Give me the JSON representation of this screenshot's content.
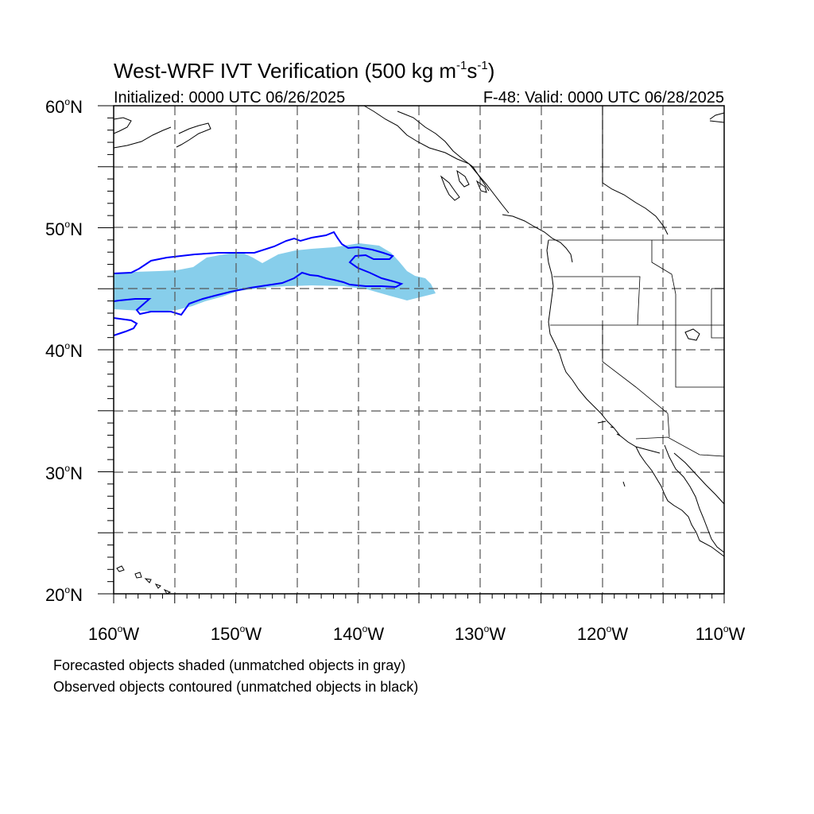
{
  "title": {
    "main": "West-WRF IVT Verification (500 kg m",
    "exp1": "-1",
    "mid": "s",
    "exp2": "-1",
    "close": ")"
  },
  "subtitle_left": "Initialized: 0000 UTC 06/26/2025",
  "subtitle_right": "F-48: Valid: 0000 UTC 06/28/2025",
  "lat_labels": [
    {
      "deg": "60",
      "hemi": "N",
      "lat": 60
    },
    {
      "deg": "50",
      "hemi": "N",
      "lat": 50
    },
    {
      "deg": "40",
      "hemi": "N",
      "lat": 40
    },
    {
      "deg": "30",
      "hemi": "N",
      "lat": 30
    },
    {
      "deg": "20",
      "hemi": "N",
      "lat": 20
    }
  ],
  "lon_labels": [
    {
      "deg": "160",
      "hemi": "W",
      "lon": -160
    },
    {
      "deg": "150",
      "hemi": "W",
      "lon": -150
    },
    {
      "deg": "140",
      "hemi": "W",
      "lon": -140
    },
    {
      "deg": "130",
      "hemi": "W",
      "lon": -130
    },
    {
      "deg": "120",
      "hemi": "W",
      "lon": -120
    },
    {
      "deg": "110",
      "hemi": "W",
      "lon": -110
    }
  ],
  "degree_symbol": "o",
  "legend": {
    "line1": "Forecasted objects shaded (unmatched objects in gray)",
    "line2": "Observed objects contoured (unmatched objects in black)"
  },
  "colors": {
    "forecast_fill": "#87ceeb",
    "observed_contour": "#0000ff",
    "coast": "#000000",
    "grid": "#555555"
  }
}
